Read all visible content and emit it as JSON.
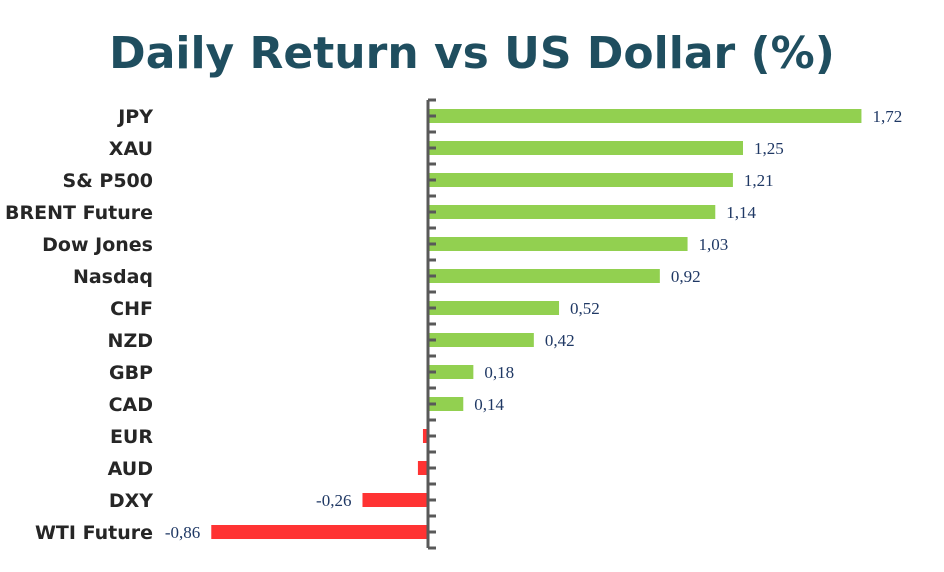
{
  "chart_data": {
    "type": "bar",
    "orientation": "horizontal",
    "title": "Daily Return vs US Dollar (%)",
    "xlabel": "",
    "ylabel": "",
    "categories": [
      "JPY",
      "XAU",
      "S& P500",
      "BRENT Future",
      "Dow Jones",
      "Nasdaq",
      "CHF",
      "NZD",
      "GBP",
      "CAD",
      "EUR",
      "AUD",
      "DXY",
      "WTI Future"
    ],
    "values": [
      1.72,
      1.25,
      1.21,
      1.14,
      1.03,
      0.92,
      0.52,
      0.42,
      0.18,
      0.14,
      -0.02,
      -0.04,
      -0.26,
      -0.86
    ],
    "labels": [
      "1,72",
      "1,25",
      "1,21",
      "1,14",
      "1,03",
      "0,92",
      "0,52",
      "0,42",
      "0,18",
      "0,14",
      "",
      "",
      "-0,26",
      "-0,86"
    ],
    "colors": {
      "positive": "#92d050",
      "negative": "#ff3333",
      "axis": "#595959",
      "title": "#1f4e5f"
    },
    "grid": false,
    "legend": "none"
  }
}
